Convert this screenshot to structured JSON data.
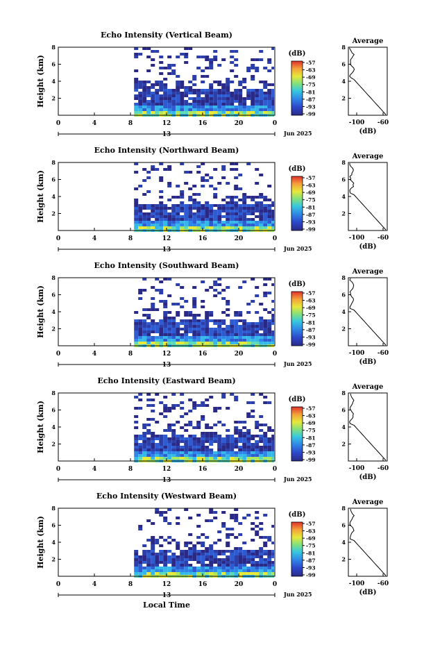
{
  "figure": {
    "bottom_xlabel": "Local Time"
  },
  "chart_data": [
    {
      "type": "heatmap",
      "title": "Echo Intensity (Vertical Beam)",
      "ylabel": "Height (km)",
      "x_ticks": [
        "0",
        "4",
        "8",
        "12",
        "16",
        "20",
        "0"
      ],
      "date_label": "13",
      "date_suffix": "Jun 2025",
      "ylim": [
        0,
        8
      ],
      "y_ticks": [
        "2",
        "4",
        "6",
        "8"
      ],
      "colorbar": {
        "unit": "(dB)",
        "ticks": [
          "-57",
          "-63",
          "-69",
          "-75",
          "-81",
          "-87",
          "-93",
          "-99"
        ]
      },
      "profile": {
        "title": "Average",
        "xlabel": "(dB)",
        "x_ticks": [
          "-100",
          "-60"
        ],
        "y_ticks": [
          "2",
          "4",
          "6",
          "8"
        ]
      }
    },
    {
      "type": "heatmap",
      "title": "Echo Intensity (Northward Beam)",
      "ylabel": "Height (km)",
      "x_ticks": [
        "0",
        "4",
        "8",
        "12",
        "16",
        "20",
        "0"
      ],
      "date_label": "13",
      "date_suffix": "Jun 2025",
      "ylim": [
        0,
        8
      ],
      "y_ticks": [
        "2",
        "4",
        "6",
        "8"
      ],
      "colorbar": {
        "unit": "(dB)",
        "ticks": [
          "-57",
          "-63",
          "-69",
          "-75",
          "-81",
          "-87",
          "-93",
          "-99"
        ]
      },
      "profile": {
        "title": "Average",
        "xlabel": "(dB)",
        "x_ticks": [
          "-100",
          "-60"
        ],
        "y_ticks": [
          "2",
          "4",
          "6",
          "8"
        ]
      }
    },
    {
      "type": "heatmap",
      "title": "Echo Intensity (Southward Beam)",
      "ylabel": "Height (km)",
      "x_ticks": [
        "0",
        "4",
        "8",
        "12",
        "16",
        "20",
        "0"
      ],
      "date_label": "13",
      "date_suffix": "Jun 2025",
      "ylim": [
        0,
        8
      ],
      "y_ticks": [
        "2",
        "4",
        "6",
        "8"
      ],
      "colorbar": {
        "unit": "(dB)",
        "ticks": [
          "-57",
          "-63",
          "-69",
          "-75",
          "-81",
          "-87",
          "-93",
          "-99"
        ]
      },
      "profile": {
        "title": "Average",
        "xlabel": "(dB)",
        "x_ticks": [
          "-100",
          "-60"
        ],
        "y_ticks": [
          "2",
          "4",
          "6",
          "8"
        ]
      }
    },
    {
      "type": "heatmap",
      "title": "Echo Intensity (Eastward Beam)",
      "ylabel": "Height (km)",
      "x_ticks": [
        "0",
        "4",
        "8",
        "12",
        "16",
        "20",
        "0"
      ],
      "date_label": "13",
      "date_suffix": "Jun 2025",
      "ylim": [
        0,
        8
      ],
      "y_ticks": [
        "2",
        "4",
        "6",
        "8"
      ],
      "colorbar": {
        "unit": "(dB)",
        "ticks": [
          "-57",
          "-63",
          "-69",
          "-75",
          "-81",
          "-87",
          "-93",
          "-99"
        ]
      },
      "profile": {
        "title": "Average",
        "xlabel": "(dB)",
        "x_ticks": [
          "-100",
          "-60"
        ],
        "y_ticks": [
          "2",
          "4",
          "6",
          "8"
        ]
      }
    },
    {
      "type": "heatmap",
      "title": "Echo Intensity (Westward Beam)",
      "ylabel": "Height (km)",
      "x_ticks": [
        "0",
        "4",
        "8",
        "12",
        "16",
        "20",
        "0"
      ],
      "date_label": "13",
      "date_suffix": "Jun 2025",
      "ylim": [
        0,
        8
      ],
      "y_ticks": [
        "2",
        "4",
        "6",
        "8"
      ],
      "colorbar": {
        "unit": "(dB)",
        "ticks": [
          "-57",
          "-63",
          "-69",
          "-75",
          "-81",
          "-87",
          "-93",
          "-99"
        ]
      },
      "profile": {
        "title": "Average",
        "xlabel": "(dB)",
        "x_ticks": [
          "-100",
          "-60"
        ],
        "y_ticks": [
          "2",
          "4",
          "6",
          "8"
        ]
      }
    }
  ]
}
